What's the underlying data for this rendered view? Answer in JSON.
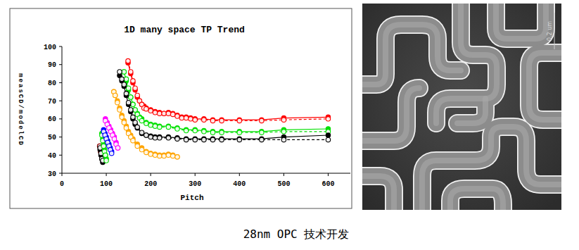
{
  "chart_data": {
    "type": "line",
    "title": "1D many space TP Trend",
    "x_label": "Pitch",
    "y_label": "measCD/modelCD",
    "xlim": [
      0,
      650
    ],
    "ylim": [
      30,
      100
    ],
    "xticks": [
      0,
      100,
      200,
      300,
      400,
      500,
      600
    ],
    "yticks": [
      30,
      40,
      50,
      60,
      70,
      80,
      90,
      100
    ],
    "grid": false,
    "series": [
      {
        "color": "#ff0000",
        "marker": "filled_circle",
        "line_style": "solid",
        "x": [
          149,
          155,
          160,
          165,
          170,
          175,
          180,
          185,
          190,
          200,
          210,
          220,
          230,
          240,
          250,
          260,
          270,
          280,
          290,
          300,
          320,
          340,
          360,
          400,
          450,
          500,
          600
        ],
        "values": [
          91,
          85,
          80,
          76,
          72,
          70,
          68,
          67,
          66,
          65,
          64,
          63.5,
          63,
          63.5,
          63,
          62,
          61,
          61,
          60.5,
          60,
          60,
          59.5,
          59.5,
          59.5,
          59.5,
          60.5,
          61
        ]
      },
      {
        "color": "#ff0000",
        "marker": "open_circle",
        "line_style": "dashed",
        "x": [
          149,
          155,
          160,
          165,
          170,
          175,
          180,
          185,
          190,
          200,
          210,
          220,
          230,
          240,
          250,
          260,
          270,
          280,
          290,
          300,
          320,
          340,
          360,
          400,
          450,
          500,
          600
        ],
        "values": [
          92,
          86,
          81,
          77,
          73,
          70,
          68,
          66,
          65.5,
          64.5,
          63.5,
          63,
          63,
          63,
          62.5,
          61.5,
          60.5,
          60.5,
          60,
          59.5,
          59.5,
          59,
          59,
          59,
          59,
          59.5,
          60
        ]
      },
      {
        "color": "#00e000",
        "marker": "filled_circle",
        "line_style": "solid",
        "x": [
          140,
          145,
          150,
          155,
          160,
          165,
          170,
          175,
          180,
          190,
          200,
          210,
          220,
          240,
          260,
          280,
          300,
          320,
          340,
          360,
          400,
          450,
          500,
          600
        ],
        "values": [
          86,
          81,
          76,
          72,
          68,
          65,
          63,
          61,
          60,
          58,
          57,
          56.5,
          56,
          56,
          55,
          54,
          54,
          53.5,
          53,
          53,
          53,
          53,
          54,
          54.5
        ]
      },
      {
        "color": "#00e000",
        "marker": "open_circle",
        "line_style": "dashed",
        "x": [
          140,
          145,
          150,
          155,
          160,
          165,
          170,
          175,
          180,
          190,
          200,
          210,
          220,
          240,
          260,
          280,
          300,
          320,
          340,
          360,
          400,
          450,
          500,
          600
        ],
        "values": [
          86,
          82,
          77,
          72,
          68,
          65,
          62.5,
          60.5,
          59,
          57.5,
          56.5,
          56,
          55.5,
          55.5,
          54.5,
          53.5,
          53.5,
          53,
          52.5,
          52.5,
          52.5,
          52.5,
          53,
          53
        ]
      },
      {
        "color": "#000000",
        "marker": "filled_circle",
        "line_style": "solid",
        "x": [
          130,
          135,
          140,
          145,
          150,
          155,
          160,
          165,
          170,
          180,
          190,
          200,
          210,
          220,
          240,
          260,
          280,
          300,
          320,
          340,
          360,
          400,
          450,
          500,
          600
        ],
        "values": [
          84,
          81,
          78,
          73,
          68,
          64,
          60,
          57,
          55,
          52,
          51,
          50.5,
          50,
          50,
          50,
          49.5,
          49,
          49,
          49,
          49,
          49,
          49,
          49,
          50,
          51
        ]
      },
      {
        "color": "#000000",
        "marker": "open_circle",
        "line_style": "dashed",
        "x": [
          130,
          135,
          140,
          145,
          150,
          155,
          160,
          165,
          170,
          180,
          190,
          200,
          210,
          220,
          240,
          260,
          280,
          300,
          320,
          340,
          360,
          400,
          450,
          500,
          600
        ],
        "values": [
          86,
          82,
          79,
          74,
          69,
          65,
          61,
          58,
          55.5,
          52.5,
          51,
          50,
          49.5,
          49.5,
          49.5,
          49,
          48.5,
          48.5,
          48.5,
          48.5,
          48.5,
          48.5,
          48.5,
          48.5,
          48.5
        ]
      },
      {
        "color": "#ffa500",
        "marker": "filled_circle",
        "line_style": "solid",
        "x": [
          117,
          120,
          125,
          130,
          135,
          140,
          145,
          150,
          155,
          160,
          170,
          180,
          190,
          200,
          210,
          220,
          230,
          240,
          250,
          260
        ],
        "values": [
          75,
          73,
          70,
          66,
          62,
          59,
          56,
          53,
          51,
          49,
          46,
          44,
          42,
          41,
          40.5,
          40,
          40,
          40.5,
          40,
          39
        ]
      },
      {
        "color": "#ffa500",
        "marker": "open_circle",
        "line_style": "dashed",
        "x": [
          117,
          120,
          125,
          130,
          135,
          140,
          145,
          150,
          155,
          160,
          170,
          180,
          190,
          200,
          210,
          220,
          230,
          240,
          250,
          260
        ],
        "values": [
          75,
          73,
          69,
          65,
          61,
          58,
          55,
          52,
          50,
          48,
          45,
          43,
          41.5,
          40.5,
          40,
          39.5,
          39.5,
          40,
          39.5,
          39
        ]
      },
      {
        "color": "#8b0000",
        "marker": "filled_circle",
        "line_style": "solid",
        "x": [
          85,
          87,
          89,
          91
        ],
        "values": [
          45,
          42,
          40,
          38
        ]
      },
      {
        "color": "#8b0000",
        "marker": "open_circle",
        "line_style": "dashed",
        "x": [
          85,
          87,
          89,
          91
        ],
        "values": [
          45,
          43,
          40,
          38
        ]
      },
      {
        "color": "#000000",
        "marker": "filled_circle",
        "line_style": "solid",
        "x": [
          86,
          88,
          90,
          92
        ],
        "values": [
          43,
          40,
          38,
          36
        ]
      },
      {
        "color": "#000000",
        "marker": "open_circle",
        "line_style": "dashed",
        "x": [
          86,
          88,
          90,
          92
        ],
        "values": [
          44,
          41,
          38,
          37
        ]
      },
      {
        "color": "#00e000",
        "marker": "filled_circle",
        "line_style": "solid",
        "x": [
          90,
          92,
          94,
          96,
          98,
          100
        ],
        "values": [
          52,
          49,
          46,
          43,
          40,
          38
        ]
      },
      {
        "color": "#00e000",
        "marker": "open_circle",
        "line_style": "dashed",
        "x": [
          90,
          92,
          94,
          96,
          98,
          100
        ],
        "values": [
          51,
          48,
          45,
          42,
          40,
          37
        ]
      },
      {
        "color": "#0000ff",
        "marker": "filled_circle",
        "line_style": "solid",
        "x": [
          94,
          97,
          100,
          103,
          106,
          109,
          112
        ],
        "values": [
          54,
          52,
          50,
          48,
          46,
          44,
          42
        ]
      },
      {
        "color": "#0000ff",
        "marker": "open_circle",
        "line_style": "dashed",
        "x": [
          94,
          97,
          100,
          103,
          106,
          109,
          112
        ],
        "values": [
          53,
          51,
          49,
          47,
          45,
          43,
          41
        ]
      },
      {
        "color": "#ff00ff",
        "marker": "filled_circle",
        "line_style": "solid",
        "x": [
          98,
          102,
          106,
          110,
          114,
          118,
          122,
          126
        ],
        "values": [
          60,
          58,
          56,
          54,
          52,
          50,
          47,
          44
        ]
      },
      {
        "color": "#ff00ff",
        "marker": "open_circle",
        "line_style": "dashed",
        "x": [
          98,
          102,
          106,
          110,
          114,
          118,
          122,
          126
        ],
        "values": [
          59,
          57,
          55,
          53,
          51,
          49,
          46,
          44
        ]
      }
    ]
  },
  "image": {
    "scale_label": "0.2 um"
  },
  "caption": "28nm OPC 技术开发"
}
